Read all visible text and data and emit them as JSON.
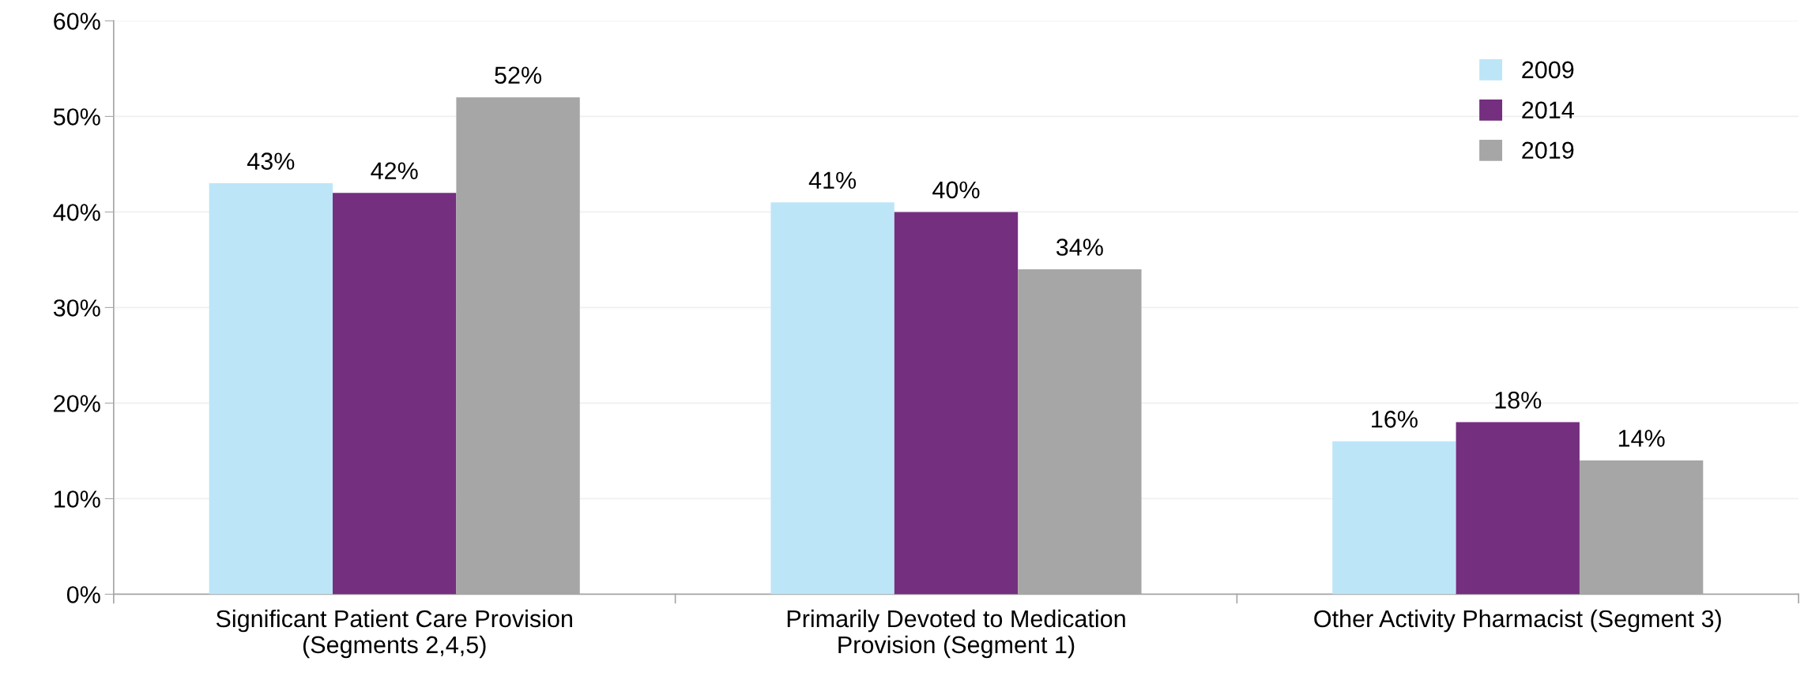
{
  "chart_data": {
    "type": "bar",
    "categories": [
      "Significant Patient Care Provision\n(Segments 2,4,5)",
      "Primarily Devoted to Medication\nProvision (Segment 1)",
      "Other Activity Pharmacist (Segment 3)"
    ],
    "series": [
      {
        "name": "2009",
        "color": "#bde5f8",
        "values": [
          43,
          41,
          16
        ],
        "value_labels": [
          "43%",
          "41%",
          "16%"
        ]
      },
      {
        "name": "2014",
        "color": "#742f7f",
        "values": [
          42,
          40,
          18
        ],
        "value_labels": [
          "42%",
          "40%",
          "18%"
        ]
      },
      {
        "name": "2019",
        "color": "#a6a6a6",
        "values": [
          52,
          34,
          14
        ],
        "value_labels": [
          "52%",
          "34%",
          "14%"
        ]
      }
    ],
    "ylim": [
      0,
      60
    ],
    "yticks": [
      {
        "value": 0,
        "label": "0%"
      },
      {
        "value": 10,
        "label": "10%"
      },
      {
        "value": 20,
        "label": "20%"
      },
      {
        "value": 30,
        "label": "30%"
      },
      {
        "value": 40,
        "label": "40%"
      },
      {
        "value": 50,
        "label": "50%"
      },
      {
        "value": 60,
        "label": "60%"
      }
    ],
    "grid": "y",
    "legend": "top right"
  }
}
